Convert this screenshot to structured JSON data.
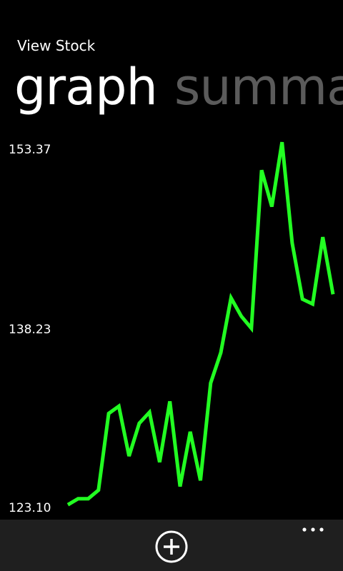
{
  "app": {
    "title": "View Stock"
  },
  "pivot": {
    "tabs": [
      {
        "label": "graph",
        "active": true
      },
      {
        "label": "summar",
        "active": false
      }
    ]
  },
  "chart_data": {
    "type": "line",
    "y_ticks": [
      "153.37",
      "138.23",
      "123.10"
    ],
    "ylim": [
      123.1,
      153.37
    ],
    "grid": false,
    "legend": "none",
    "series": [
      {
        "color": "#22ff22",
        "values": [
          123.5,
          124.0,
          124.0,
          124.7,
          131.0,
          131.6,
          127.5,
          130.2,
          131.1,
          127.0,
          132.0,
          125.0,
          129.5,
          125.5,
          133.5,
          136.0,
          140.5,
          139.0,
          138.0,
          151.0,
          148.0,
          153.3,
          145.0,
          140.4,
          140.0,
          145.5,
          140.8
        ]
      }
    ]
  },
  "app_bar": {
    "add_icon": "add-circle-icon",
    "more_icon": "ellipsis-icon"
  },
  "colors": {
    "background": "#000000",
    "accent_line": "#22ff22",
    "app_bar": "#1f1f1f",
    "inactive_pivot": "#5b5b5b"
  }
}
